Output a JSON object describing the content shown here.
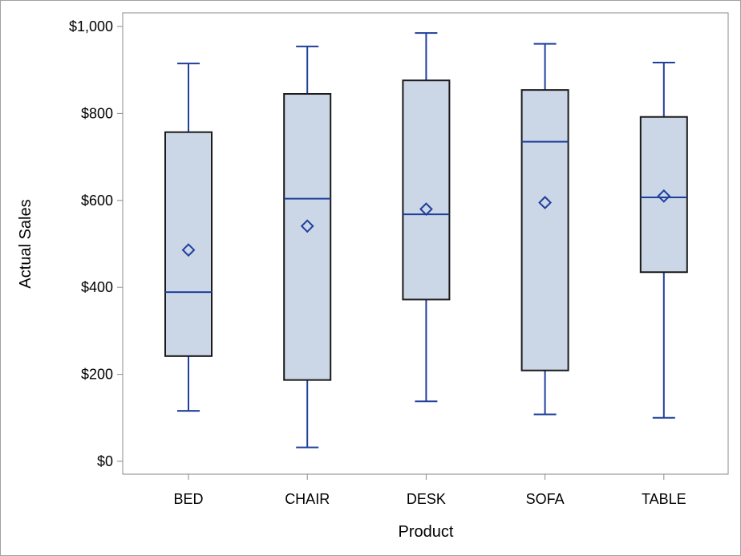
{
  "colors": {
    "box_fill": "#cbd6e6",
    "box_stroke": "#1a1a1a",
    "whisker": "#1f3f9c",
    "median": "#1f3f9c",
    "mean_marker": "#1f3f9c",
    "axis": "#8a8a8a",
    "frame": "#a0a0a0"
  },
  "chart_data": {
    "type": "box",
    "title": "",
    "xlabel": "Product",
    "ylabel": "Actual Sales",
    "ylim": [
      0,
      1000
    ],
    "yticks": [
      0,
      200,
      400,
      600,
      800,
      1000
    ],
    "ytick_labels": [
      "$0",
      "$200",
      "$400",
      "$600",
      "$800",
      "$1,000"
    ],
    "grid": false,
    "categories": [
      "BED",
      "CHAIR",
      "DESK",
      "SOFA",
      "TABLE"
    ],
    "boxes": [
      {
        "category": "BED",
        "min": 116,
        "q1": 242,
        "median": 389,
        "q3": 757,
        "max": 915,
        "mean": 486
      },
      {
        "category": "CHAIR",
        "min": 32,
        "q1": 187,
        "median": 604,
        "q3": 845,
        "max": 954,
        "mean": 541
      },
      {
        "category": "DESK",
        "min": 138,
        "q1": 372,
        "median": 568,
        "q3": 876,
        "max": 985,
        "mean": 580
      },
      {
        "category": "SOFA",
        "min": 108,
        "q1": 209,
        "median": 735,
        "q3": 854,
        "max": 960,
        "mean": 595
      },
      {
        "category": "TABLE",
        "min": 100,
        "q1": 435,
        "median": 607,
        "q3": 792,
        "max": 917,
        "mean": 610
      }
    ]
  }
}
